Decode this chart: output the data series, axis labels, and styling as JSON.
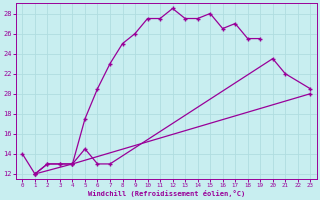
{
  "xlabel": "Windchill (Refroidissement éolien,°C)",
  "bg_color": "#c8eef0",
  "line_color": "#990099",
  "grid_color": "#b0dde0",
  "curve1_x": [
    0,
    1,
    2,
    3,
    4,
    5,
    6,
    7,
    8,
    9,
    10,
    11,
    12,
    13,
    14,
    15,
    16,
    17,
    18,
    19
  ],
  "curve1_y": [
    14,
    12,
    13,
    13,
    13,
    17.5,
    20.5,
    23,
    25,
    26,
    27.5,
    27.5,
    28.5,
    27.5,
    27.5,
    28,
    26.5,
    27,
    25.5,
    25.5
  ],
  "curve2_x": [
    1,
    2,
    3,
    4,
    5,
    6,
    7,
    20,
    21,
    23
  ],
  "curve2_y": [
    12,
    13,
    13,
    13,
    14.5,
    13,
    13,
    23.5,
    22,
    20.5
  ],
  "curve3_x": [
    1,
    4,
    23
  ],
  "curve3_y": [
    12,
    13,
    20
  ],
  "xlim": [
    -0.5,
    23.5
  ],
  "ylim": [
    11.5,
    29
  ],
  "yticks": [
    12,
    14,
    16,
    18,
    20,
    22,
    24,
    26,
    28
  ],
  "xticks": [
    0,
    1,
    2,
    3,
    4,
    5,
    6,
    7,
    8,
    9,
    10,
    11,
    12,
    13,
    14,
    15,
    16,
    17,
    18,
    19,
    20,
    21,
    22,
    23
  ]
}
